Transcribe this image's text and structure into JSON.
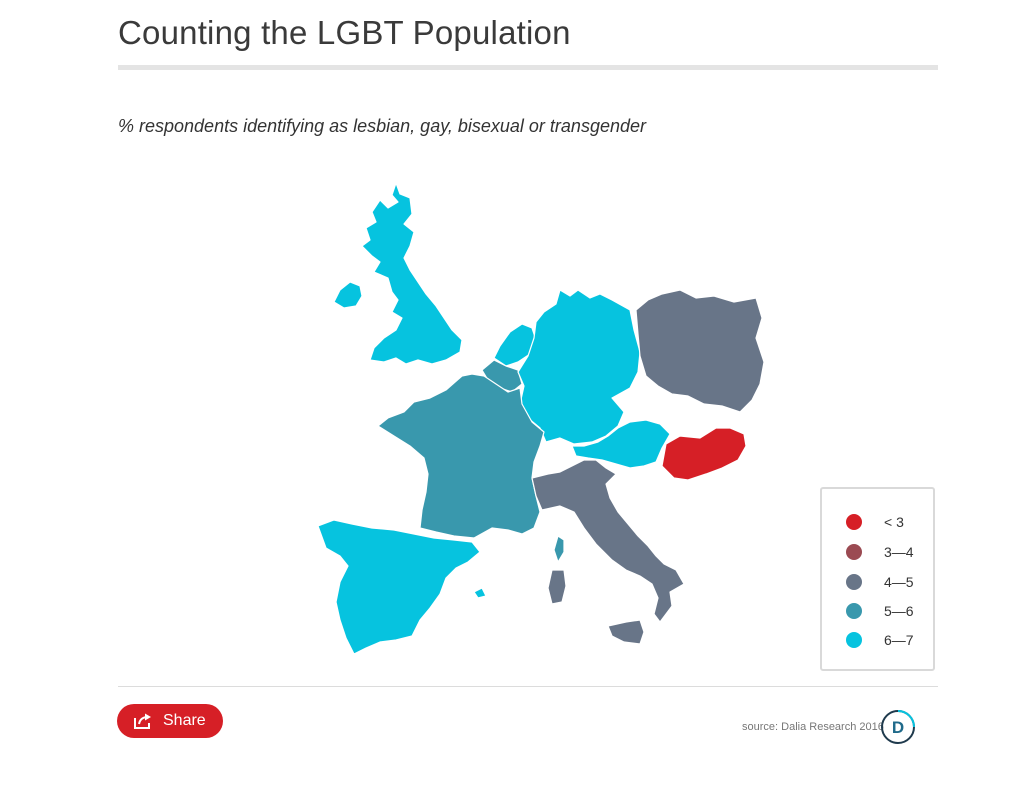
{
  "header": {
    "title": "Counting the LGBT Population",
    "subtitle": "% respondents identifying as lesbian, gay, bisexual or transgender"
  },
  "map": {
    "countries": [
      {
        "name": "United Kingdom",
        "bin": "6–7"
      },
      {
        "name": "Ireland",
        "bin": "6–7"
      },
      {
        "name": "Netherlands",
        "bin": "6–7"
      },
      {
        "name": "Germany",
        "bin": "6–7"
      },
      {
        "name": "Austria",
        "bin": "6–7"
      },
      {
        "name": "Spain",
        "bin": "6–7"
      },
      {
        "name": "France",
        "bin": "5–6"
      },
      {
        "name": "Belgium",
        "bin": "5–6"
      },
      {
        "name": "Poland",
        "bin": "4–5"
      },
      {
        "name": "Italy",
        "bin": "4–5"
      },
      {
        "name": "Hungary",
        "bin": "< 3"
      }
    ]
  },
  "legend": {
    "items": [
      {
        "label": "< 3",
        "color": "#d61f26"
      },
      {
        "label": "3—4",
        "color": "#9b4a52"
      },
      {
        "label": "4—5",
        "color": "#687588"
      },
      {
        "label": "5—6",
        "color": "#3998ad"
      },
      {
        "label": "6—7",
        "color": "#06c3df"
      }
    ]
  },
  "colors": {
    "lt3": "#d61f26",
    "b34": "#9b4a52",
    "b45": "#687588",
    "b56": "#3998ad",
    "b67": "#06c3df"
  },
  "footer": {
    "share_label": "Share",
    "share_icon": "share-icon",
    "source": "source: Dalia Research 2016",
    "logo_letter": "D"
  }
}
